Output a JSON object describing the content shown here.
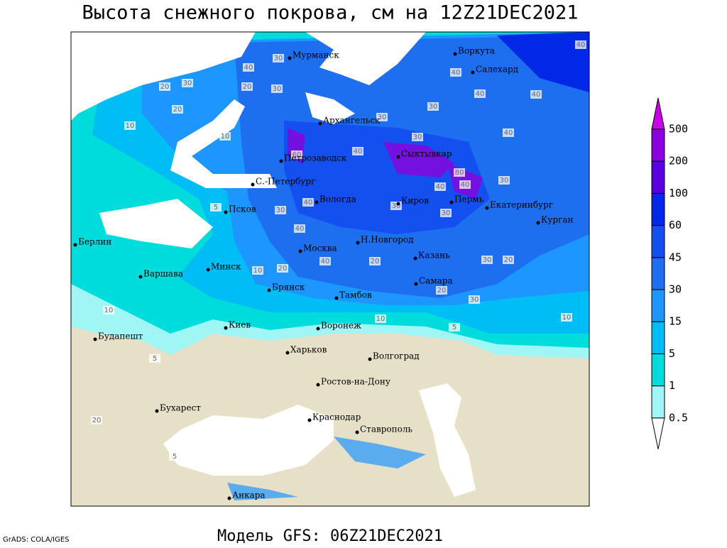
{
  "title": "Высота снежного покрова, см на 12Z21DEC2021",
  "footer": "Модель GFS: 06Z21DEC2021",
  "credit": "GrADS: COLA/IGES",
  "cities": [
    "Мурманск",
    "Воркута",
    "Салехард",
    "Архангельск",
    "Сыктывкар",
    "Петрозаводск",
    "С.-Петербург",
    "Вологда",
    "Киров",
    "Пермь",
    "Екатеринбург",
    "Курган",
    "Псков",
    "Берлин",
    "Н.Новгород",
    "Москва",
    "Казань",
    "Минск",
    "Варшава",
    "Самара",
    "Брянск",
    "Тамбов",
    "Киев",
    "Воронеж",
    "Будапешт",
    "Харьков",
    "Волгоград",
    "Ростов-на-Дону",
    "Бухарест",
    "Краснодар",
    "Ставрополь",
    "Анкара"
  ],
  "contour_labels": [
    40,
    40,
    30,
    40,
    40,
    40,
    30,
    20,
    20,
    30,
    20,
    30,
    10,
    10,
    30,
    40,
    40,
    30,
    60,
    30,
    40,
    40,
    80,
    30,
    40,
    40,
    30,
    30,
    20,
    30,
    20,
    10,
    20,
    40,
    20,
    30,
    10,
    5,
    10,
    5,
    20,
    5,
    5,
    10
  ],
  "colorbar": {
    "levels": [
      0.5,
      1,
      5,
      15,
      30,
      45,
      60,
      100,
      200,
      500
    ],
    "colors": [
      "#ffffff",
      "#a0f5f5",
      "#00dcdc",
      "#00beF5",
      "#1e96ff",
      "#1e6ef0",
      "#1450f0",
      "#0028e6",
      "#5a00dc",
      "#8c00dc",
      "#c800e6"
    ]
  }
}
